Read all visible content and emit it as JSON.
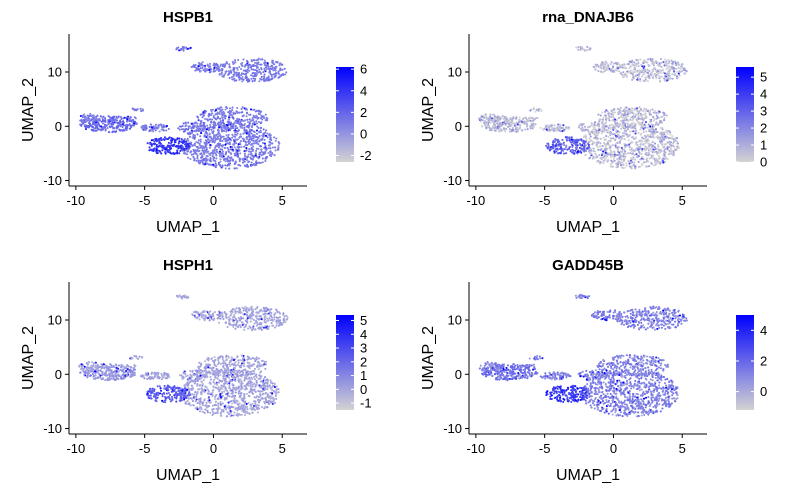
{
  "chart_data": [
    {
      "type": "scatter",
      "title": "HSPB1",
      "xlabel": "UMAP_1",
      "ylabel": "UMAP_2",
      "xlim": [
        -10.5,
        6.8
      ],
      "ylim": [
        -11,
        17
      ],
      "x_ticks": [
        -10,
        -5,
        0,
        5
      ],
      "y_ticks": [
        -10,
        0,
        10
      ],
      "color_low": "#d3d3d3",
      "color_high": "#0000ff",
      "legend": {
        "placement": "right",
        "min": -2.6,
        "max": 6.2,
        "ticks": [
          6,
          4,
          2,
          0,
          -2
        ]
      }
    },
    {
      "type": "scatter",
      "title": "rna_DNAJB6",
      "xlabel": "UMAP_1",
      "ylabel": "UMAP_2",
      "xlim": [
        -10.5,
        6.8
      ],
      "ylim": [
        -11,
        17
      ],
      "x_ticks": [
        -10,
        -5,
        0,
        5
      ],
      "y_ticks": [
        -10,
        0,
        10
      ],
      "color_low": "#d3d3d3",
      "color_high": "#0000ff",
      "legend": {
        "placement": "right",
        "min": 0,
        "max": 5.6,
        "ticks": [
          5,
          4,
          3,
          2,
          1,
          0
        ]
      }
    },
    {
      "type": "scatter",
      "title": "HSPH1",
      "xlabel": "UMAP_1",
      "ylabel": "UMAP_2",
      "xlim": [
        -10.5,
        6.8
      ],
      "ylim": [
        -11,
        17
      ],
      "x_ticks": [
        -10,
        -5,
        0,
        5
      ],
      "y_ticks": [
        -10,
        0,
        10
      ],
      "color_low": "#d3d3d3",
      "color_high": "#0000ff",
      "legend": {
        "placement": "right",
        "min": -1.5,
        "max": 5.4,
        "ticks": [
          5,
          4,
          3,
          2,
          1,
          0,
          -1
        ]
      }
    },
    {
      "type": "scatter",
      "title": "GADD45B",
      "xlabel": "UMAP_1",
      "ylabel": "UMAP_2",
      "xlim": [
        -10.5,
        6.8
      ],
      "ylim": [
        -11,
        17
      ],
      "x_ticks": [
        -10,
        -5,
        0,
        5
      ],
      "y_ticks": [
        -10,
        0,
        10
      ],
      "color_low": "#d3d3d3",
      "color_high": "#0000ff",
      "legend": {
        "placement": "right",
        "min": -1.2,
        "max": 5.0,
        "ticks": [
          4,
          2,
          0
        ]
      }
    }
  ]
}
